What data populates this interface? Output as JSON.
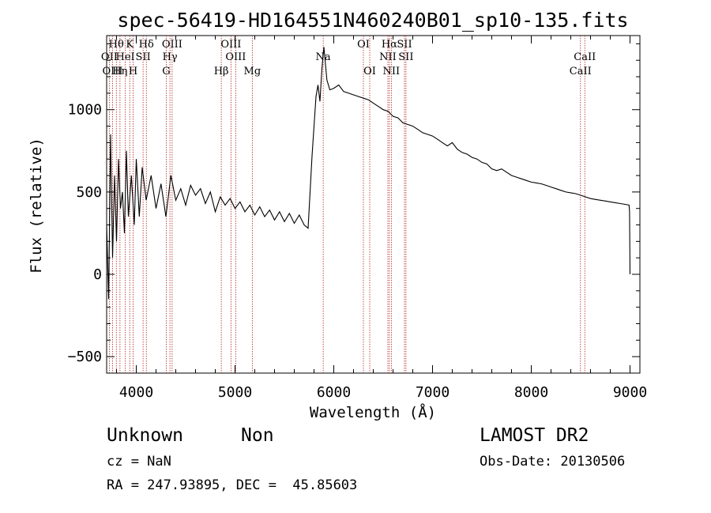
{
  "chart_data": {
    "type": "line",
    "title": "spec-56419-HD164551N460240B01_sp10-135.fits",
    "xlabel": "Wavelength (Å)",
    "ylabel": "Flux (relative)",
    "xlim": [
      3700,
      9100
    ],
    "ylim": [
      -600,
      1450
    ],
    "xticks": [
      4000,
      5000,
      6000,
      7000,
      8000,
      9000
    ],
    "xtick_labels": [
      "4000",
      "5000",
      "6000",
      "7000",
      "8000",
      "9000"
    ],
    "yticks": [
      -500,
      0,
      500,
      1000
    ],
    "ytick_labels": [
      "−500",
      "0",
      "500",
      "1000"
    ],
    "series": [
      {
        "x": [
          3700,
          3720,
          3740,
          3760,
          3780,
          3800,
          3820,
          3840,
          3860,
          3880,
          3900,
          3920,
          3950,
          3980,
          4000,
          4030,
          4060,
          4100,
          4150,
          4200,
          4250,
          4300,
          4350,
          4400,
          4450,
          4500,
          4550,
          4600,
          4650,
          4700,
          4750,
          4800,
          4850,
          4900,
          4950,
          5000,
          5050,
          5100,
          5150,
          5200,
          5250,
          5300,
          5350,
          5400,
          5450,
          5500,
          5550,
          5600,
          5650,
          5700,
          5740,
          5760,
          5780,
          5800,
          5820,
          5840,
          5860,
          5880,
          5900,
          5930,
          5960,
          6000,
          6050,
          6100,
          6150,
          6200,
          6250,
          6300,
          6350,
          6400,
          6450,
          6500,
          6550,
          6600,
          6650,
          6700,
          6750,
          6800,
          6850,
          6900,
          6950,
          7000,
          7050,
          7100,
          7150,
          7200,
          7250,
          7300,
          7350,
          7400,
          7450,
          7500,
          7550,
          7600,
          7650,
          7700,
          7750,
          7800,
          7850,
          7900,
          7950,
          8000,
          8050,
          8100,
          8150,
          8200,
          8250,
          8300,
          8350,
          8400,
          8450,
          8500,
          8550,
          8600,
          8650,
          8700,
          8750,
          8800,
          8850,
          8900,
          8950,
          8990,
          8995,
          9000
        ],
        "y": [
          300,
          -150,
          850,
          100,
          600,
          200,
          700,
          400,
          500,
          250,
          750,
          350,
          600,
          300,
          700,
          350,
          650,
          450,
          600,
          400,
          550,
          350,
          600,
          450,
          520,
          420,
          540,
          480,
          520,
          430,
          500,
          380,
          470,
          420,
          460,
          400,
          440,
          380,
          420,
          360,
          410,
          350,
          390,
          330,
          380,
          320,
          370,
          310,
          360,
          300,
          280,
          500,
          720,
          900,
          1080,
          1150,
          1050,
          1250,
          1380,
          1180,
          1120,
          1130,
          1150,
          1110,
          1100,
          1090,
          1080,
          1070,
          1060,
          1040,
          1020,
          1000,
          990,
          960,
          950,
          920,
          910,
          900,
          880,
          860,
          850,
          840,
          820,
          800,
          780,
          800,
          760,
          740,
          730,
          710,
          700,
          680,
          670,
          640,
          630,
          640,
          620,
          600,
          590,
          580,
          570,
          560,
          555,
          550,
          540,
          530,
          520,
          510,
          500,
          495,
          490,
          480,
          470,
          460,
          455,
          450,
          445,
          440,
          435,
          430,
          425,
          420,
          380,
          0
        ]
      }
    ],
    "spectral_lines": [
      {
        "name": "Hθ",
        "x": 3798,
        "row": 0
      },
      {
        "name": "K",
        "x": 3934,
        "row": 0
      },
      {
        "name": "Hδ",
        "x": 4102,
        "row": 0
      },
      {
        "name": "OIII",
        "x": 4363,
        "row": 0
      },
      {
        "name": "OIII",
        "x": 4959,
        "row": 0
      },
      {
        "name": "OI",
        "x": 6300,
        "row": 0
      },
      {
        "name": "Hα",
        "x": 6563,
        "row": 0
      },
      {
        "name": "SII",
        "x": 6716,
        "row": 0
      },
      {
        "name": "OII",
        "x": 3727,
        "row": 1
      },
      {
        "name": "HeI",
        "x": 3889,
        "row": 1
      },
      {
        "name": "SII",
        "x": 4069,
        "row": 1
      },
      {
        "name": "Hγ",
        "x": 4341,
        "row": 1
      },
      {
        "name": "OIII",
        "x": 5007,
        "row": 1
      },
      {
        "name": "Na",
        "x": 5893,
        "row": 1
      },
      {
        "name": "NII",
        "x": 6548,
        "row": 1
      },
      {
        "name": "SII",
        "x": 6731,
        "row": 1
      },
      {
        "name": "CaII",
        "x": 8542,
        "row": 1
      },
      {
        "name": "OIII",
        "x": 3760,
        "row": 2
      },
      {
        "name": "Hη",
        "x": 3835,
        "row": 2
      },
      {
        "name": "H",
        "x": 3968,
        "row": 2
      },
      {
        "name": "G",
        "x": 4304,
        "row": 2
      },
      {
        "name": "Hβ",
        "x": 4861,
        "row": 2
      },
      {
        "name": "Mg",
        "x": 5175,
        "row": 2
      },
      {
        "name": "OI",
        "x": 6364,
        "row": 2
      },
      {
        "name": "NII",
        "x": 6583,
        "row": 2
      },
      {
        "name": "CaII",
        "x": 8498,
        "row": 2
      }
    ],
    "line_color": "#000000",
    "marker_line_color": "#b22222",
    "grid": false,
    "legend": "none"
  },
  "info": {
    "class_label": "Unknown",
    "subclass_label": "Non",
    "survey": "LAMOST DR2",
    "cz": "cz = NaN",
    "obs_date": "Obs-Date: 20130506",
    "coords": "RA = 247.93895, DEC =  45.85603"
  }
}
